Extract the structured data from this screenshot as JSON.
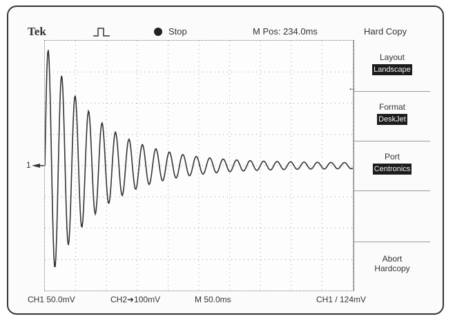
{
  "header": {
    "brand": "Tek",
    "trigger_state": "Stop",
    "m_pos": "M Pos: 234.0ms",
    "menu_title": "Hard Copy"
  },
  "menu": {
    "layout_label": "Layout",
    "layout_value": "Landscape",
    "format_label": "Format",
    "format_value": "DeskJet",
    "port_label": "Port",
    "port_value": "Centronics",
    "abort_line1": "Abort",
    "abort_line2": "Hardcopy"
  },
  "screen": {
    "ground_marker": "1"
  },
  "footer": {
    "ch1_scale": "CH1   50.0mV",
    "ch2_scale": "CH2➜100mV",
    "time_scale": "M 50.0ms",
    "trigger": "CH1  /  124mV"
  },
  "colors": {
    "trace": "#333333",
    "grid": "#9a9a9a",
    "menu_value_bg": "#1c1c1c"
  }
}
